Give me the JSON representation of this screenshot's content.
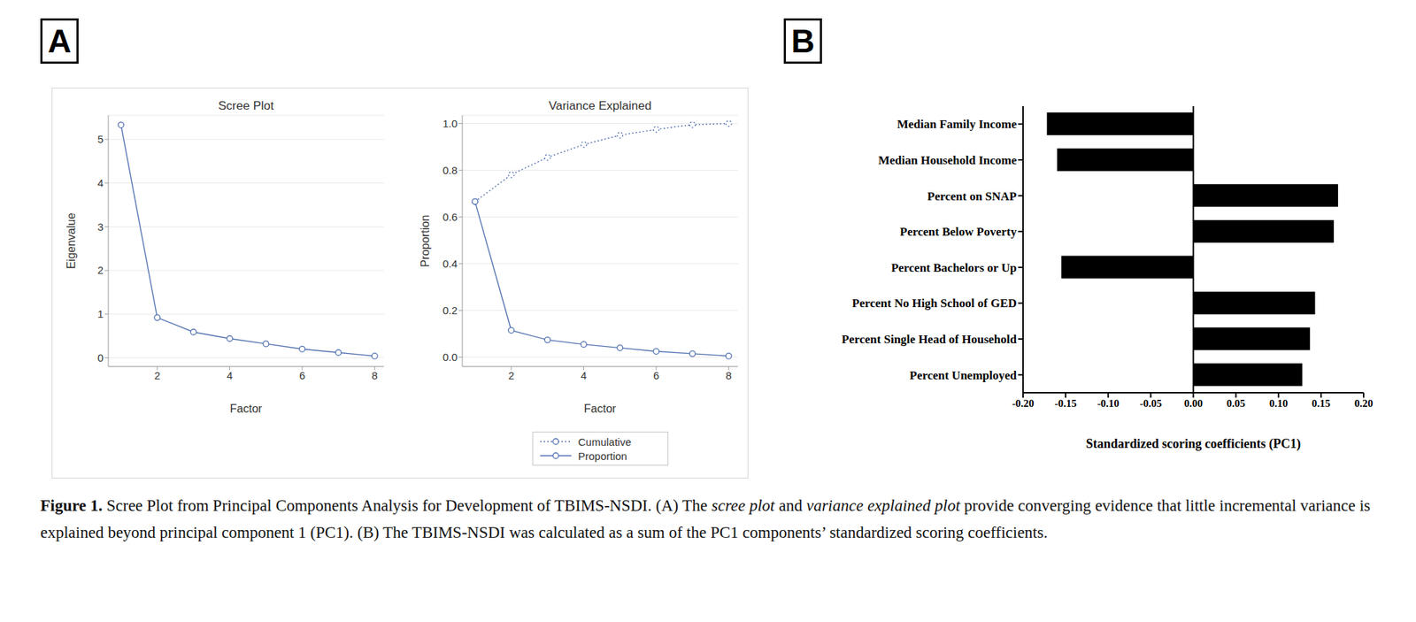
{
  "panel_labels": [
    "A",
    "B"
  ],
  "chart_data": [
    {
      "type": "line",
      "title": "Scree Plot",
      "x_label": "Factor",
      "y_label": "Eigenvalue",
      "x": [
        1,
        2,
        3,
        4,
        5,
        6,
        7,
        8
      ],
      "values": [
        5.33,
        0.92,
        0.59,
        0.44,
        0.32,
        0.2,
        0.12,
        0.04
      ],
      "color": "#4f6fb0",
      "marker": "circle",
      "line_style": "solid",
      "xlim": [
        0.65,
        8.25
      ],
      "xticks": [
        2,
        4,
        6,
        8
      ],
      "ylim": [
        -0.2,
        5.55
      ],
      "yticks": [
        0,
        1,
        2,
        3,
        4,
        5
      ],
      "grid": true
    },
    {
      "type": "line",
      "title": "Variance Explained",
      "x_label": "Factor",
      "y_label": "Proportion",
      "x": [
        1,
        2,
        3,
        4,
        5,
        6,
        7,
        8
      ],
      "series": [
        {
          "name": "Cumulative",
          "color": "#4f6fb0",
          "marker": "circle",
          "line_style": "dotted",
          "values": [
            0.666,
            0.781,
            0.855,
            0.91,
            0.95,
            0.975,
            0.995,
            1.0
          ]
        },
        {
          "name": "Proportion",
          "color": "#4f6fb0",
          "marker": "circle",
          "line_style": "solid",
          "values": [
            0.666,
            0.115,
            0.074,
            0.055,
            0.04,
            0.025,
            0.015,
            0.005
          ]
        }
      ],
      "xlim": [
        0.65,
        8.25
      ],
      "xticks": [
        2,
        4,
        6,
        8
      ],
      "ylim": [
        -0.04,
        1.035
      ],
      "yticks": [
        {
          "value": 0,
          "label": "0.0"
        },
        {
          "value": 0.2,
          "label": "0.2"
        },
        {
          "value": 0.4,
          "label": "0.4"
        },
        {
          "value": 0.6,
          "label": "0.6"
        },
        {
          "value": 0.8,
          "label": "0.8"
        },
        {
          "value": 1,
          "label": "1.0"
        }
      ],
      "grid": true,
      "legend": "bottom"
    },
    {
      "type": "bar",
      "orientation": "horizontal",
      "x_label": "Standardized scoring coefficients (PC1)",
      "categories": [
        "Median Family Income",
        "Median Household Income",
        "Percent on SNAP",
        "Percent Below Poverty",
        "Percent Bachelors or Up",
        "Percent No High School of GED",
        "Percent Single Head of Household",
        "Percent Unemployed"
      ],
      "values": [
        -0.172,
        -0.16,
        0.17,
        0.165,
        -0.155,
        0.143,
        0.137,
        0.128
      ],
      "color": "#000000",
      "xlim": [
        -0.2,
        0.2
      ],
      "xticks": [
        {
          "value": -0.2,
          "label": "-0.20"
        },
        {
          "value": -0.15,
          "label": "-0.15"
        },
        {
          "value": -0.1,
          "label": "-0.10"
        },
        {
          "value": -0.05,
          "label": "-0.05"
        },
        {
          "value": 0,
          "label": "0.00"
        },
        {
          "value": 0.05,
          "label": "0.05"
        },
        {
          "value": 0.1,
          "label": "0.10"
        },
        {
          "value": 0.15,
          "label": "0.15"
        },
        {
          "value": 0.2,
          "label": "0.20"
        }
      ]
    }
  ],
  "caption": [
    {
      "text": "Figure 1.",
      "bold": true
    },
    {
      "text": " Scree Plot from Principal Components Analysis for Development of TBIMS-NSDI. (A) The "
    },
    {
      "text": "scree plot",
      "italic": true
    },
    {
      "text": " and "
    },
    {
      "text": "variance explained plot",
      "italic": true
    },
    {
      "text": " provide converging evidence that little incremental variance is explained beyond principal component 1 (PC1). (B) The TBIMS-NSDI was calculated as a sum of the PC1 components’ standardized scoring coefficients."
    }
  ]
}
